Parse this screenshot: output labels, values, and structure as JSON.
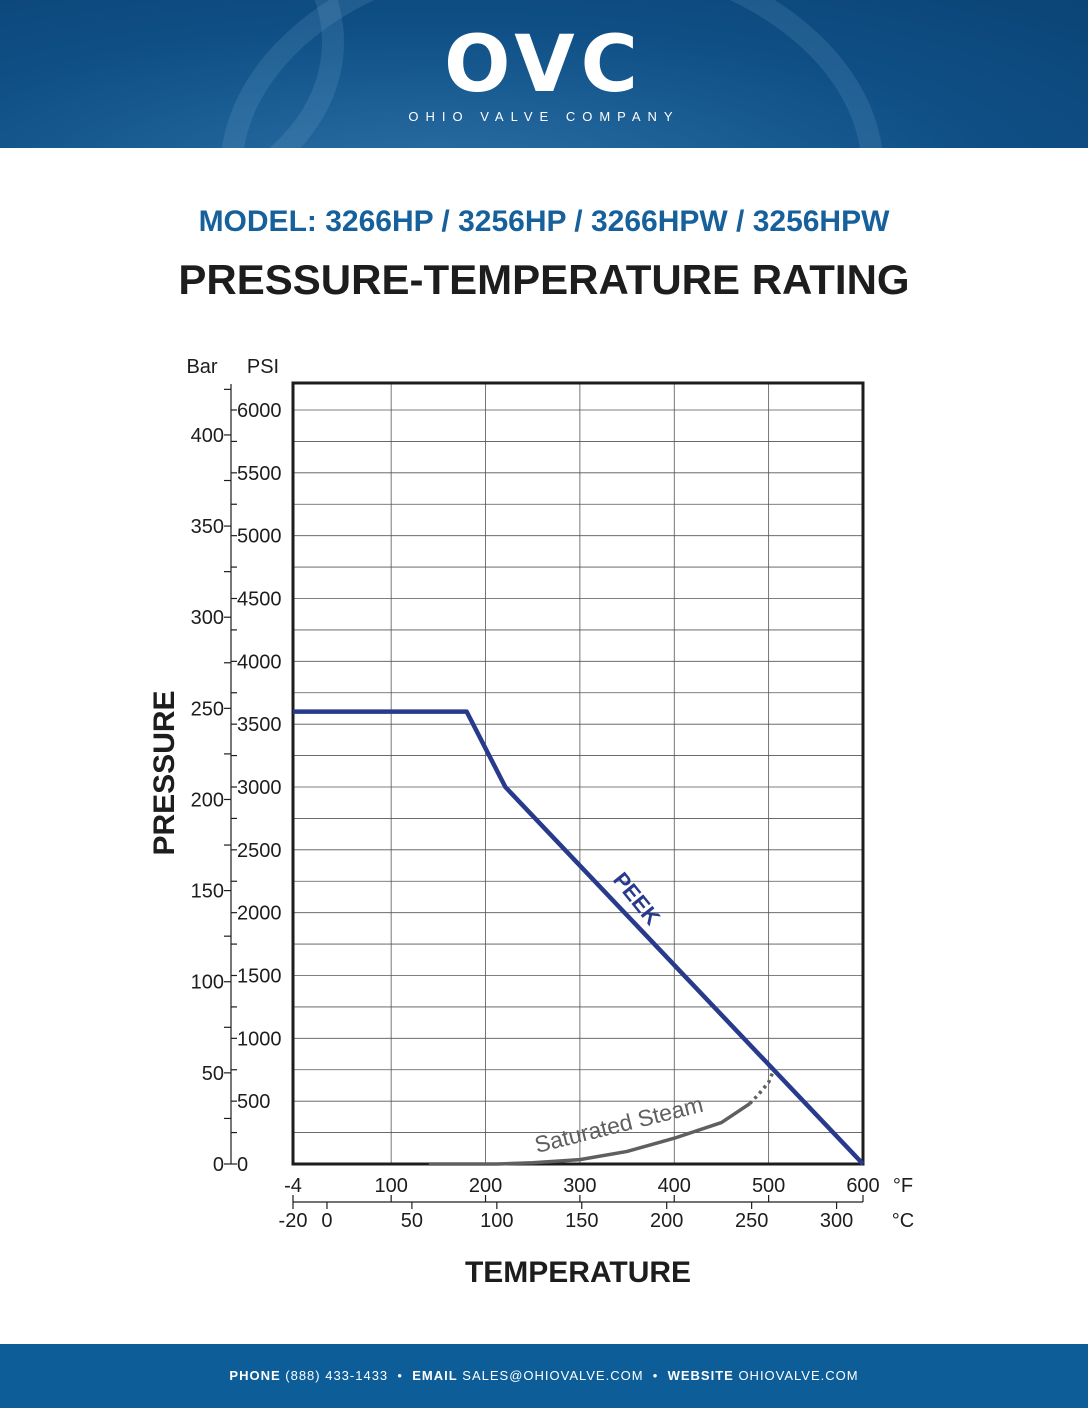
{
  "header": {
    "logo_text": "OVC",
    "logo_subtext": "OHIO VALVE COMPANY",
    "brand_color": "#0f5088"
  },
  "model": "MODEL: 3266HP / 3256HP / 3266HPW / 3256HPW",
  "title": "PRESSURE-TEMPERATURE RATING",
  "chart_data": {
    "type": "line",
    "ylabel": "PRESSURE",
    "xlabel": "TEMPERATURE",
    "y_units": {
      "primary": "PSI",
      "secondary": "Bar"
    },
    "x_units": {
      "primary": "°F",
      "secondary": "°C"
    },
    "xlim_F": [
      -4,
      600
    ],
    "ylim_psi": [
      0,
      6000
    ],
    "grid": true,
    "psi_ticks": [
      0,
      500,
      1000,
      1500,
      2000,
      2500,
      3000,
      3500,
      4000,
      4500,
      5000,
      5500,
      6000
    ],
    "bar_ticks": [
      0,
      50,
      100,
      150,
      200,
      250,
      300,
      350,
      400
    ],
    "f_ticks": [
      -4,
      100,
      200,
      300,
      400,
      500,
      600
    ],
    "c_ticks": [
      -20,
      0,
      50,
      100,
      150,
      200,
      250,
      300
    ],
    "series": [
      {
        "name": "PEEK",
        "color": "#283a8c",
        "x": [
          -4,
          180,
          221,
          600
        ],
        "y": [
          3600,
          3600,
          3000,
          0
        ]
      },
      {
        "name": "Saturated Steam",
        "color": "#5f5f5f",
        "x": [
          140,
          212,
          250,
          300,
          350,
          400,
          450,
          480
        ],
        "y": [
          0,
          0,
          10,
          35,
          100,
          205,
          330,
          480
        ],
        "dashed_extension": {
          "x": [
            480,
            490,
            500,
            505
          ],
          "y": [
            480,
            560,
            650,
            740
          ]
        }
      }
    ]
  },
  "footer": {
    "phone_label": "PHONE",
    "phone": "(888) 433-1433",
    "email_label": "EMAIL",
    "email": "SALES@OHIOVALVE.COM",
    "website_label": "WEBSITE",
    "website": "OHIOVALVE.COM",
    "separator": "•"
  }
}
